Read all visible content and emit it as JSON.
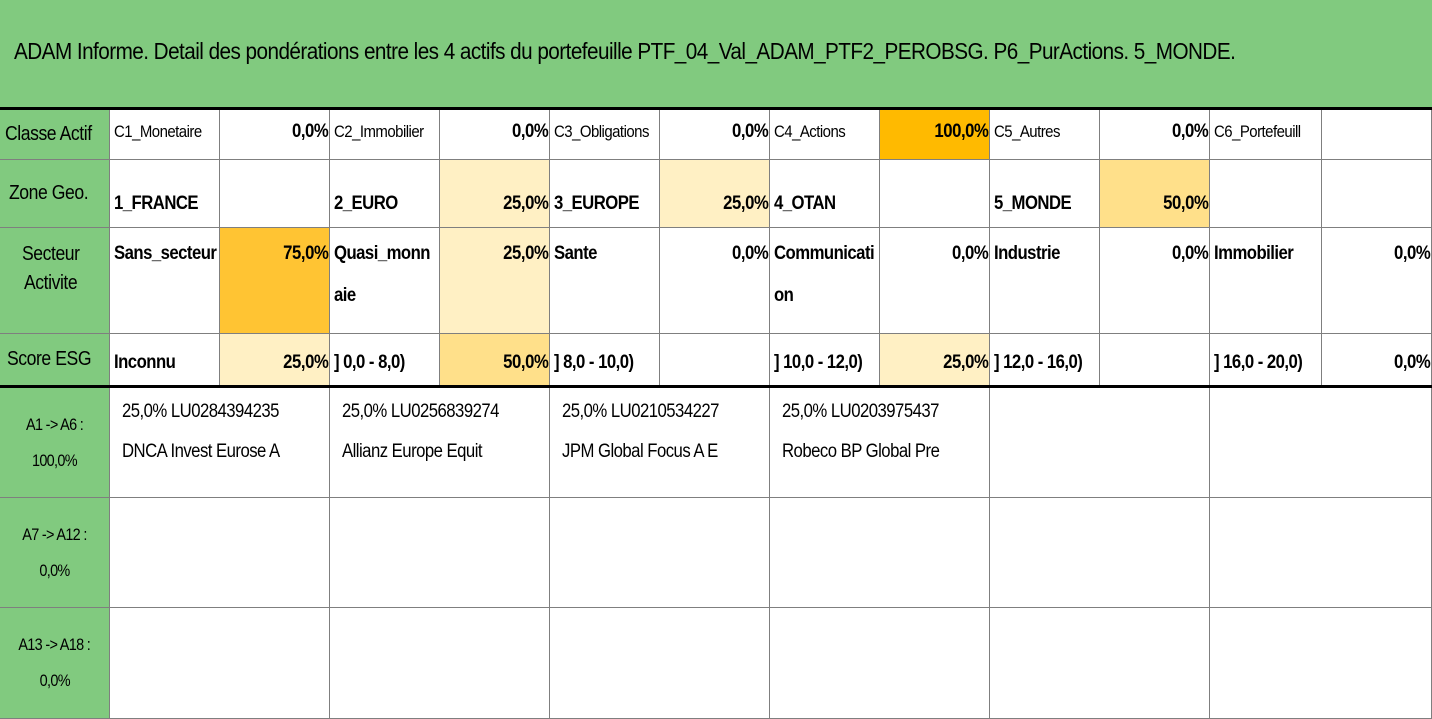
{
  "title": "ADAM Informe. Detail des pondérations entre les 4 actifs du portefeuille PTF_04_Val_ADAM_PTF2_PEROBSG. P6_PurActions. 5_MONDE.",
  "rows": {
    "classe": {
      "header": "Classe Actif",
      "pairs": [
        {
          "label": "C1_Monetaire",
          "value": "0,0%"
        },
        {
          "label": "C2_Immobilier",
          "value": "0,0%"
        },
        {
          "label": "C3_Obligations",
          "value": "0,0%"
        },
        {
          "label": "C4_Actions",
          "value": "100,0%"
        },
        {
          "label": "C5_Autres",
          "value": "0,0%"
        },
        {
          "label": "C6_Portefeuill",
          "value": ""
        }
      ]
    },
    "zone": {
      "header": "Zone Geo.",
      "pairs": [
        {
          "label": "1_FRANCE",
          "value": ""
        },
        {
          "label": "2_EURO",
          "value": "25,0%"
        },
        {
          "label": "3_EUROPE",
          "value": "25,0%"
        },
        {
          "label": "4_OTAN",
          "value": ""
        },
        {
          "label": "5_MONDE",
          "value": "50,0%"
        },
        {
          "label": "",
          "value": ""
        }
      ]
    },
    "secteur": {
      "header_line1": "Secteur",
      "header_line2": "Activite",
      "pairs": [
        {
          "label": "Sans_secteur",
          "label2": "",
          "value": "75,0%"
        },
        {
          "label": "Quasi_monn",
          "label2": "aie",
          "value": "25,0%"
        },
        {
          "label": "Sante",
          "label2": "",
          "value": "0,0%"
        },
        {
          "label": "Communicati",
          "label2": "on",
          "value": "0,0%"
        },
        {
          "label": "Industrie",
          "label2": "",
          "value": "0,0%"
        },
        {
          "label": "Immobilier",
          "label2": "",
          "value": "0,0%"
        }
      ]
    },
    "esg": {
      "header": "Score ESG",
      "pairs": [
        {
          "label": "Inconnu",
          "value": "25,0%"
        },
        {
          "label": "] 0,0 - 8,0)",
          "value": "50,0%"
        },
        {
          "label": "] 8,0 - 10,0)",
          "value": ""
        },
        {
          "label": "] 10,0 - 12,0)",
          "value": "25,0%"
        },
        {
          "label": "] 12,0 - 16,0)",
          "value": ""
        },
        {
          "label": "] 16,0 - 20,0)",
          "value": "0,0%"
        }
      ]
    }
  },
  "asset_groups": [
    {
      "header_line1": "A1 -> A6 :",
      "header_line2": "100,0%",
      "assets": [
        {
          "line1": "25,0% LU0284394235",
          "line2": "DNCA Invest Eurose A"
        },
        {
          "line1": "25,0% LU0256839274",
          "line2": "Allianz Europe Equit"
        },
        {
          "line1": "25,0% LU0210534227",
          "line2": "JPM Global Focus A E"
        },
        {
          "line1": "25,0% LU0203975437",
          "line2": "Robeco BP Global Pre"
        },
        {
          "line1": "",
          "line2": ""
        },
        {
          "line1": "",
          "line2": ""
        }
      ]
    },
    {
      "header_line1": "A7 -> A12 : 0,0%",
      "header_line2": "",
      "assets": []
    },
    {
      "header_line1": "A13 -> A18 :",
      "header_line2": "0,0%",
      "assets": []
    }
  ],
  "colors": {
    "header_green": "#81ca7f",
    "pale_yellow": "#fff0c4",
    "mid_yellow": "#ffe08a",
    "strong_yellow": "#ffc433",
    "orange": "#ffba00"
  }
}
